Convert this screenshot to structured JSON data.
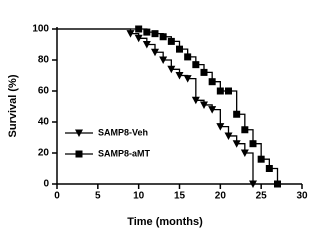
{
  "chart_data": {
    "type": "step",
    "x_label": "Time (months)",
    "y_label": "Survival (%)",
    "xlim": [
      0,
      30
    ],
    "xticks": [
      0,
      5,
      10,
      15,
      20,
      25,
      30
    ],
    "ylim": [
      0,
      100
    ],
    "yticks": [
      0,
      20,
      40,
      60,
      80,
      100
    ],
    "legend": "lower-left",
    "series": [
      {
        "name": "SAMP8-Veh",
        "color": "#000000",
        "marker": "triangle-down",
        "x": [
          0,
          9,
          10,
          11,
          12,
          13,
          14,
          15,
          16,
          17,
          18,
          19,
          20,
          21,
          22,
          23,
          24
        ],
        "values": [
          100,
          97,
          94,
          90,
          85,
          80,
          74,
          70,
          68,
          54,
          51,
          48,
          37,
          31,
          26,
          20,
          0
        ]
      },
      {
        "name": "SAMP8-aMT",
        "color": "#000000",
        "marker": "square",
        "x": [
          0,
          10,
          11,
          12,
          13,
          14,
          15,
          16,
          17,
          18,
          19,
          20,
          21,
          22,
          23,
          24,
          25,
          26,
          27
        ],
        "values": [
          100,
          100,
          98,
          97,
          95,
          92,
          87,
          82,
          77,
          72,
          66,
          60,
          60,
          45,
          35,
          26,
          16,
          10,
          0
        ]
      }
    ]
  }
}
